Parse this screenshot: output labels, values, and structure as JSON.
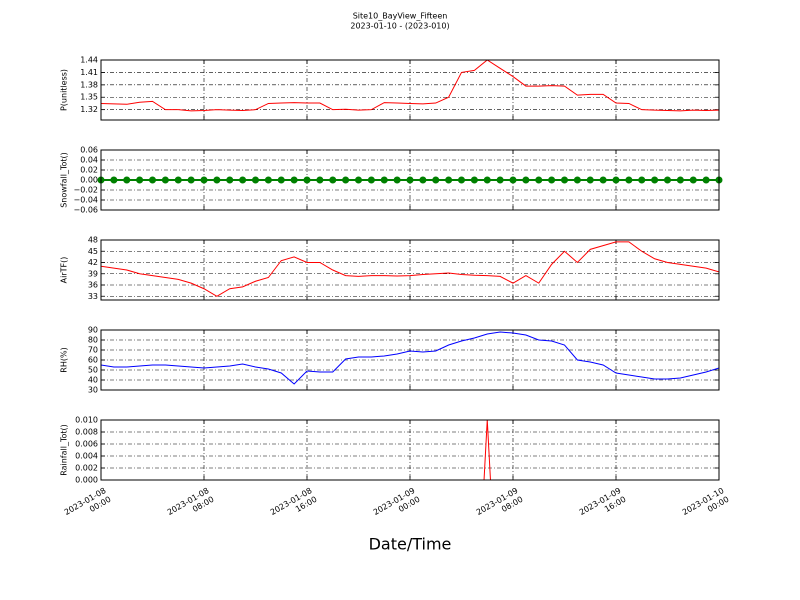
{
  "chart_data": [
    {
      "type": "line",
      "title": "Site10_BayView_Fifteen",
      "subtitle": "2023-01-10 - (2023-010)",
      "ylabel": "P(unitless)",
      "color": "#ff0000",
      "grid": true,
      "x": [
        "2023-01-08 00:00",
        "2023-01-08 01:00",
        "2023-01-08 02:00",
        "2023-01-08 03:00",
        "2023-01-08 04:00",
        "2023-01-08 05:00",
        "2023-01-08 06:00",
        "2023-01-08 07:00",
        "2023-01-08 08:00",
        "2023-01-08 09:00",
        "2023-01-08 10:00",
        "2023-01-08 11:00",
        "2023-01-08 12:00",
        "2023-01-08 13:00",
        "2023-01-08 14:00",
        "2023-01-08 15:00",
        "2023-01-08 16:00",
        "2023-01-08 17:00",
        "2023-01-08 18:00",
        "2023-01-08 19:00",
        "2023-01-08 20:00",
        "2023-01-08 21:00",
        "2023-01-08 22:00",
        "2023-01-08 23:00",
        "2023-01-09 00:00",
        "2023-01-09 01:00",
        "2023-01-09 02:00",
        "2023-01-09 03:00",
        "2023-01-09 04:00",
        "2023-01-09 05:00",
        "2023-01-09 06:00",
        "2023-01-09 07:00",
        "2023-01-09 08:00",
        "2023-01-09 09:00",
        "2023-01-09 10:00",
        "2023-01-09 11:00",
        "2023-01-09 12:00",
        "2023-01-09 13:00",
        "2023-01-09 14:00",
        "2023-01-09 15:00",
        "2023-01-09 16:00",
        "2023-01-09 17:00",
        "2023-01-09 18:00",
        "2023-01-09 19:00",
        "2023-01-09 20:00",
        "2023-01-09 21:00",
        "2023-01-09 22:00",
        "2023-01-09 23:00",
        "2023-01-10 00:00"
      ],
      "values": [
        1.335,
        1.334,
        1.333,
        1.338,
        1.34,
        1.32,
        1.32,
        1.317,
        1.318,
        1.32,
        1.319,
        1.318,
        1.32,
        1.335,
        1.336,
        1.337,
        1.336,
        1.336,
        1.32,
        1.321,
        1.319,
        1.32,
        1.337,
        1.336,
        1.335,
        1.334,
        1.336,
        1.35,
        1.41,
        1.415,
        1.44,
        1.42,
        1.4,
        1.377,
        1.377,
        1.378,
        1.377,
        1.355,
        1.357,
        1.357,
        1.336,
        1.335,
        1.32,
        1.319,
        1.318,
        1.317,
        1.319,
        1.318,
        1.319
      ],
      "ylim": [
        1.295,
        1.44
      ],
      "yticks": [
        1.32,
        1.35,
        1.38,
        1.41,
        1.44
      ]
    },
    {
      "type": "line",
      "marker": true,
      "ylabel": "Snowfall_Tot()",
      "color": "#008000",
      "grid": true,
      "x": [
        "2023-01-08 00:00",
        "2023-01-08 01:00",
        "2023-01-08 02:00",
        "2023-01-08 03:00",
        "2023-01-08 04:00",
        "2023-01-08 05:00",
        "2023-01-08 06:00",
        "2023-01-08 07:00",
        "2023-01-08 08:00",
        "2023-01-08 09:00",
        "2023-01-08 10:00",
        "2023-01-08 11:00",
        "2023-01-08 12:00",
        "2023-01-08 13:00",
        "2023-01-08 14:00",
        "2023-01-08 15:00",
        "2023-01-08 16:00",
        "2023-01-08 17:00",
        "2023-01-08 18:00",
        "2023-01-08 19:00",
        "2023-01-08 20:00",
        "2023-01-08 21:00",
        "2023-01-08 22:00",
        "2023-01-08 23:00",
        "2023-01-09 00:00",
        "2023-01-09 01:00",
        "2023-01-09 02:00",
        "2023-01-09 03:00",
        "2023-01-09 04:00",
        "2023-01-09 05:00",
        "2023-01-09 06:00",
        "2023-01-09 07:00",
        "2023-01-09 08:00",
        "2023-01-09 09:00",
        "2023-01-09 10:00",
        "2023-01-09 11:00",
        "2023-01-09 12:00",
        "2023-01-09 13:00",
        "2023-01-09 14:00",
        "2023-01-09 15:00",
        "2023-01-09 16:00",
        "2023-01-09 17:00",
        "2023-01-09 18:00",
        "2023-01-09 19:00",
        "2023-01-09 20:00",
        "2023-01-09 21:00",
        "2023-01-09 22:00",
        "2023-01-09 23:00",
        "2023-01-10 00:00"
      ],
      "values": [
        0,
        0,
        0,
        0,
        0,
        0,
        0,
        0,
        0,
        0,
        0,
        0,
        0,
        0,
        0,
        0,
        0,
        0,
        0,
        0,
        0,
        0,
        0,
        0,
        0,
        0,
        0,
        0,
        0,
        0,
        0,
        0,
        0,
        0,
        0,
        0,
        0,
        0,
        0,
        0,
        0,
        0,
        0,
        0,
        0,
        0,
        0,
        0,
        0
      ],
      "ylim": [
        -0.06,
        0.06
      ],
      "yticks": [
        {
          "value": 0.06,
          "label": "0.06"
        },
        {
          "value": 0.04,
          "label": "0.04"
        },
        {
          "value": 0.02,
          "label": "0.02"
        },
        {
          "value": 0,
          "label": "0.00"
        },
        {
          "value": -0.02,
          "label": "−0.02"
        },
        {
          "value": -0.04,
          "label": "−0.04"
        },
        {
          "value": -0.06,
          "label": "−0.06"
        }
      ]
    },
    {
      "type": "line",
      "ylabel": "AirTF()",
      "color": "#ff0000",
      "grid": true,
      "x": [
        "2023-01-08 00:00",
        "2023-01-08 01:00",
        "2023-01-08 02:00",
        "2023-01-08 03:00",
        "2023-01-08 04:00",
        "2023-01-08 05:00",
        "2023-01-08 06:00",
        "2023-01-08 07:00",
        "2023-01-08 08:00",
        "2023-01-08 09:00",
        "2023-01-08 10:00",
        "2023-01-08 11:00",
        "2023-01-08 12:00",
        "2023-01-08 13:00",
        "2023-01-08 14:00",
        "2023-01-08 15:00",
        "2023-01-08 16:00",
        "2023-01-08 17:00",
        "2023-01-08 18:00",
        "2023-01-08 19:00",
        "2023-01-08 20:00",
        "2023-01-08 21:00",
        "2023-01-08 22:00",
        "2023-01-08 23:00",
        "2023-01-09 00:00",
        "2023-01-09 01:00",
        "2023-01-09 02:00",
        "2023-01-09 03:00",
        "2023-01-09 04:00",
        "2023-01-09 05:00",
        "2023-01-09 06:00",
        "2023-01-09 07:00",
        "2023-01-09 08:00",
        "2023-01-09 09:00",
        "2023-01-09 10:00",
        "2023-01-09 11:00",
        "2023-01-09 12:00",
        "2023-01-09 13:00",
        "2023-01-09 14:00",
        "2023-01-09 15:00",
        "2023-01-09 16:00",
        "2023-01-09 17:00",
        "2023-01-09 18:00",
        "2023-01-09 19:00",
        "2023-01-09 20:00",
        "2023-01-09 21:00",
        "2023-01-09 22:00",
        "2023-01-09 23:00",
        "2023-01-10 00:00"
      ],
      "values": [
        41,
        40.5,
        40,
        39,
        38.5,
        38,
        37.5,
        36.5,
        35,
        33,
        35,
        35.5,
        37,
        38,
        42.5,
        43.5,
        42,
        42,
        40,
        38.5,
        38.3,
        38.5,
        38.5,
        38.4,
        38.5,
        38.8,
        39,
        39.2,
        38.8,
        38.6,
        38.5,
        38.3,
        36.5,
        38.5,
        36.5,
        41.5,
        45,
        42,
        45.5,
        46.5,
        47.5,
        47.5,
        45,
        43,
        42,
        41.5,
        41,
        40.5,
        39.5
      ],
      "ylim": [
        32,
        48
      ],
      "yticks": [
        33,
        36,
        39,
        42,
        45,
        48
      ]
    },
    {
      "type": "line",
      "ylabel": "RH(%)",
      "color": "#0000ff",
      "grid": true,
      "x": [
        "2023-01-08 00:00",
        "2023-01-08 01:00",
        "2023-01-08 02:00",
        "2023-01-08 03:00",
        "2023-01-08 04:00",
        "2023-01-08 05:00",
        "2023-01-08 06:00",
        "2023-01-08 07:00",
        "2023-01-08 08:00",
        "2023-01-08 09:00",
        "2023-01-08 10:00",
        "2023-01-08 11:00",
        "2023-01-08 12:00",
        "2023-01-08 13:00",
        "2023-01-08 14:00",
        "2023-01-08 15:00",
        "2023-01-08 16:00",
        "2023-01-08 17:00",
        "2023-01-08 18:00",
        "2023-01-08 19:00",
        "2023-01-08 20:00",
        "2023-01-08 21:00",
        "2023-01-08 22:00",
        "2023-01-08 23:00",
        "2023-01-09 00:00",
        "2023-01-09 01:00",
        "2023-01-09 02:00",
        "2023-01-09 03:00",
        "2023-01-09 04:00",
        "2023-01-09 05:00",
        "2023-01-09 06:00",
        "2023-01-09 07:00",
        "2023-01-09 08:00",
        "2023-01-09 09:00",
        "2023-01-09 10:00",
        "2023-01-09 11:00",
        "2023-01-09 12:00",
        "2023-01-09 13:00",
        "2023-01-09 14:00",
        "2023-01-09 15:00",
        "2023-01-09 16:00",
        "2023-01-09 17:00",
        "2023-01-09 18:00",
        "2023-01-09 19:00",
        "2023-01-09 20:00",
        "2023-01-09 21:00",
        "2023-01-09 22:00",
        "2023-01-09 23:00",
        "2023-01-10 00:00"
      ],
      "values": [
        55,
        53,
        53,
        54,
        55,
        55,
        54,
        53,
        52,
        53,
        54,
        56,
        53,
        51,
        47,
        36,
        49,
        48,
        48,
        61,
        63,
        63,
        64,
        66,
        69,
        68,
        69,
        75,
        79,
        82,
        86,
        88,
        87,
        85,
        80,
        79,
        75,
        60,
        58,
        55,
        47,
        45,
        43,
        41,
        41,
        42,
        45,
        48,
        52
      ],
      "ylim": [
        30,
        90
      ],
      "yticks": [
        30,
        40,
        50,
        60,
        70,
        80,
        90
      ]
    },
    {
      "type": "line",
      "ylabel": "Rainfall_Tot()",
      "xlabel": "Date/Time",
      "color": "#ff0000",
      "grid": true,
      "x": [
        "2023-01-08 00:00",
        "2023-01-09 05:45",
        "2023-01-09 06:00",
        "2023-01-09 06:15",
        "2023-01-10 00:00"
      ],
      "values": [
        0,
        0,
        0.01,
        0,
        0
      ],
      "ylim": [
        0,
        0.01
      ],
      "yticks": [
        {
          "value": 0,
          "label": "0.000"
        },
        {
          "value": 0.002,
          "label": "0.002"
        },
        {
          "value": 0.004,
          "label": "0.004"
        },
        {
          "value": 0.006,
          "label": "0.006"
        },
        {
          "value": 0.008,
          "label": "0.008"
        },
        {
          "value": 0.01,
          "label": "0.010"
        }
      ],
      "xlim": [
        "2023-01-08 00:00",
        "2023-01-10 00:00"
      ],
      "xticks": [
        {
          "value": "2023-01-08 00:00",
          "label": "2023-01-08\n00:00"
        },
        {
          "value": "2023-01-08 08:00",
          "label": "2023-01-08\n08:00"
        },
        {
          "value": "2023-01-08 16:00",
          "label": "2023-01-08\n16:00"
        },
        {
          "value": "2023-01-09 00:00",
          "label": "2023-01-09\n00:00"
        },
        {
          "value": "2023-01-09 08:00",
          "label": "2023-01-09\n08:00"
        },
        {
          "value": "2023-01-09 16:00",
          "label": "2023-01-09\n16:00"
        },
        {
          "value": "2023-01-10 00:00",
          "label": "2023-01-10\n00:00"
        }
      ]
    }
  ]
}
